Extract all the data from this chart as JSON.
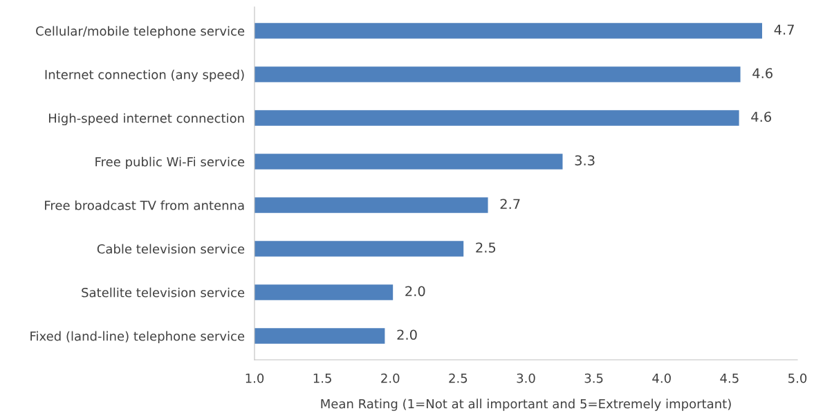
{
  "chart_data": {
    "type": "bar",
    "orientation": "horizontal",
    "xlabel": "Mean Rating (1=Not at all important and 5=Extremely important)",
    "categories": [
      "Cellular/mobile telephone service",
      "Internet connection (any speed)",
      "High-speed internet connection",
      "Free public Wi-Fi service",
      "Free broadcast TV from antenna",
      "Cable television service",
      "Satellite television service",
      "Fixed (land-line) telephone service"
    ],
    "values": [
      4.74,
      4.58,
      4.57,
      3.27,
      2.72,
      2.54,
      2.02,
      1.96
    ],
    "value_labels": [
      "4.7",
      "4.6",
      "4.6",
      "3.3",
      "2.7",
      "2.5",
      "2.0",
      "2.0"
    ],
    "color": "#4f81bd",
    "xlim": [
      1.0,
      5.0
    ],
    "xticks": [
      {
        "value": 1.0,
        "label": "1.0"
      },
      {
        "value": 1.5,
        "label": "1.5"
      },
      {
        "value": 2.0,
        "label": "2.0"
      },
      {
        "value": 2.5,
        "label": "2.5"
      },
      {
        "value": 3.0,
        "label": "3.0"
      },
      {
        "value": 3.5,
        "label": "3.5"
      },
      {
        "value": 4.0,
        "label": "4.0"
      },
      {
        "value": 4.5,
        "label": "4.5"
      },
      {
        "value": 5.0,
        "label": "5.0"
      }
    ],
    "grid": false,
    "legend": false
  }
}
